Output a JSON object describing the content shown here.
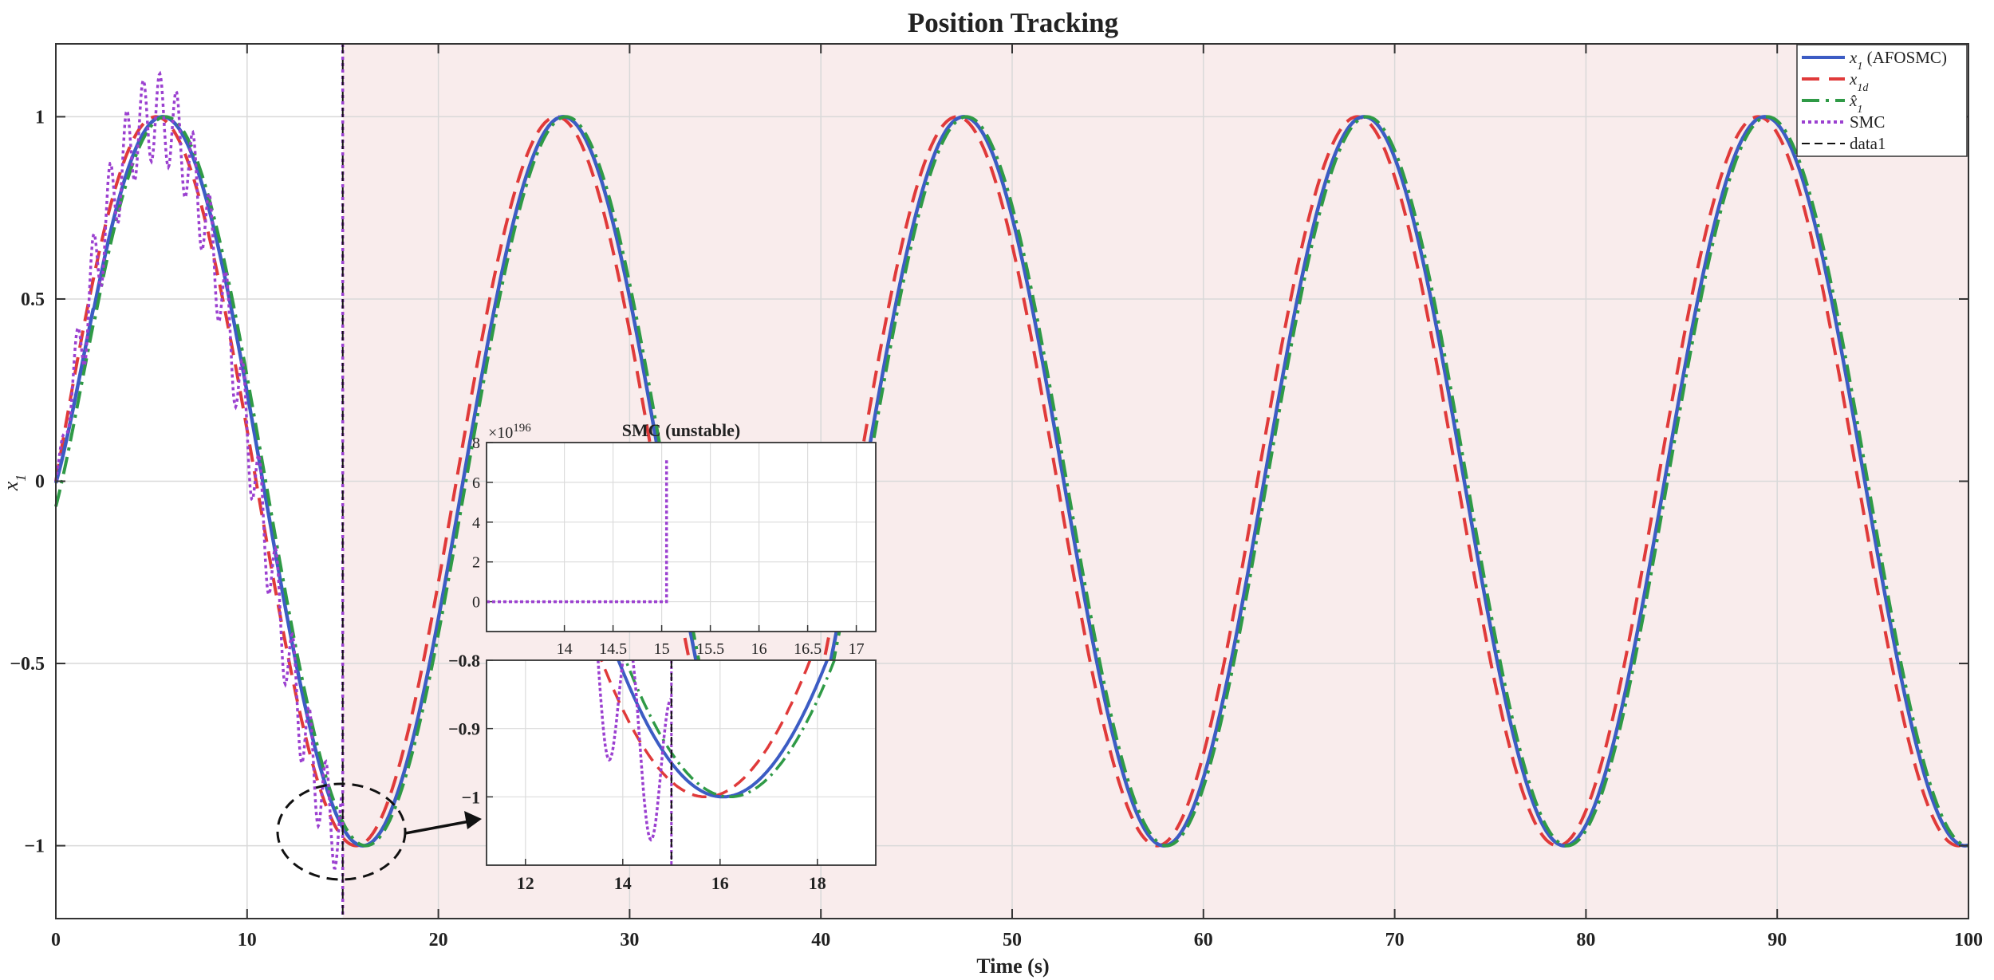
{
  "chart_data": [
    {
      "id": "main",
      "type": "line",
      "title": "Position Tracking",
      "xlabel": "Time (s)",
      "ylabel": "x1",
      "xlim": [
        0,
        100
      ],
      "ylim": [
        -1.2,
        1.2
      ],
      "xticks": [
        0,
        10,
        20,
        30,
        40,
        50,
        60,
        70,
        80,
        90,
        100
      ],
      "yticks": [
        -1,
        -0.5,
        0,
        0.5,
        1
      ],
      "grid": true,
      "legend_position": "top-right",
      "shaded_region": {
        "x_start": 15,
        "x_end": 100,
        "color": "#f9ecec"
      },
      "vertical_marker_x": 15,
      "reference": {
        "type": "sine",
        "amplitude": 1,
        "period": 20.94,
        "phase_zero": 0
      },
      "series": [
        {
          "key": "x1",
          "name": "x_1 (AFOSMC)",
          "color": "#3c5cc4",
          "style": "solid",
          "description": "tracks sin with slight lag",
          "lag": 0.35
        },
        {
          "key": "x1d",
          "name": "x_1d",
          "color": "#e03a3a",
          "style": "dashed",
          "lag": 0
        },
        {
          "key": "x1hat",
          "name": "x̂_1",
          "color": "#2f9a46",
          "style": "dashdot",
          "lag": 0.5
        },
        {
          "key": "smc",
          "name": "SMC",
          "color": "#9b40d0",
          "style": "dotted",
          "end_x": 15,
          "chatter_amplitude": 0.12
        },
        {
          "key": "data1",
          "name": "data1",
          "color": "#111111",
          "style": "dashed"
        }
      ]
    },
    {
      "id": "inset-top",
      "type": "line",
      "title": "SMC (unstable)",
      "exponent_label": "×10^196",
      "xlim": [
        13.2,
        17.2
      ],
      "ylim": [
        -1.5,
        8
      ],
      "xticks": [
        14,
        14.5,
        15,
        15.5,
        16,
        16.5,
        17
      ],
      "yticks": [
        0,
        2,
        4,
        6,
        8
      ],
      "grid": true,
      "series": [
        {
          "name": "SMC",
          "color": "#9b40d0",
          "style": "dotted",
          "points": [
            [
              13.2,
              0
            ],
            [
              15.05,
              0
            ],
            [
              15.05,
              7.2
            ]
          ]
        }
      ]
    },
    {
      "id": "inset-bottom",
      "type": "line",
      "xlim": [
        11.2,
        19.2
      ],
      "ylim": [
        -1.1,
        -0.8
      ],
      "xticks": [
        12,
        14,
        16,
        18
      ],
      "yticks": [
        -0.8,
        -0.9,
        -1
      ],
      "vertical_marker_x": 15,
      "grid": true
    }
  ]
}
